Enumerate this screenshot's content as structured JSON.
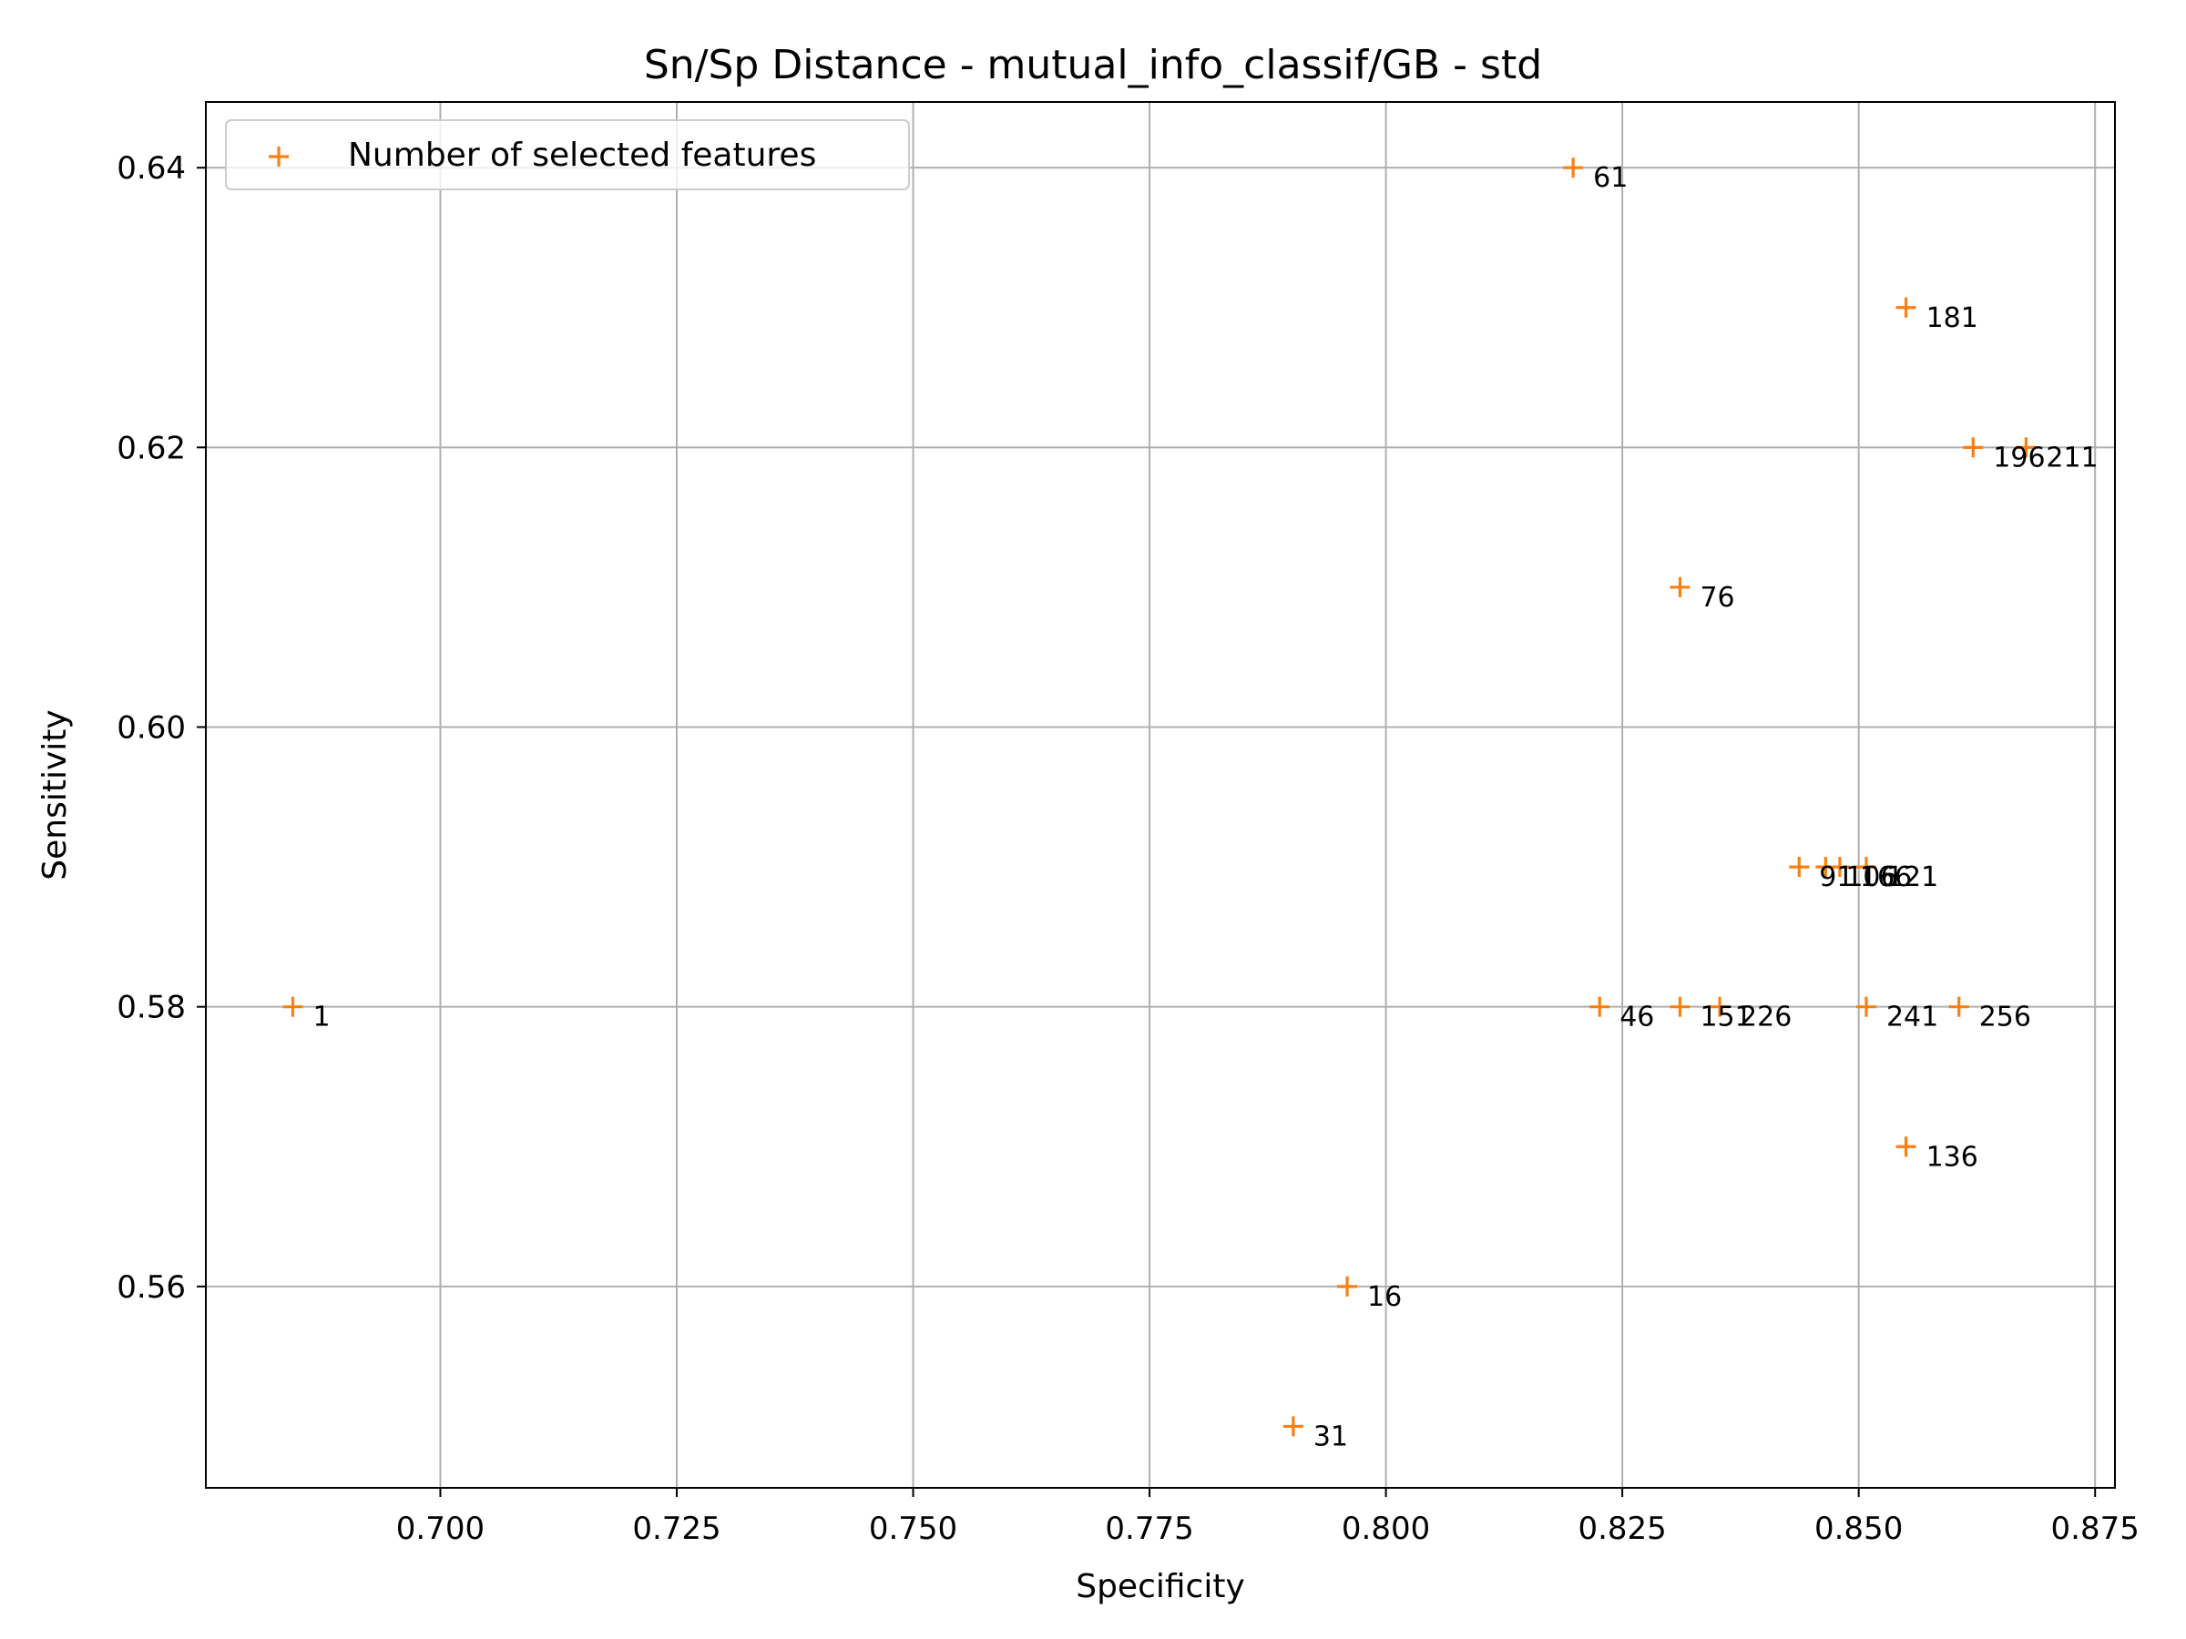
{
  "chart_data": {
    "type": "scatter",
    "title": "Sn/Sp Distance - mutual_info_classif/GB - std",
    "xlabel": "Specificity",
    "ylabel": "Sensitivity",
    "xlim": [
      0.6752,
      0.8771
    ],
    "ylim": [
      0.5456,
      0.6447
    ],
    "xticks": [
      0.7,
      0.725,
      0.75,
      0.775,
      0.8,
      0.825,
      0.85,
      0.875
    ],
    "xtick_labels": [
      "0.700",
      "0.725",
      "0.750",
      "0.775",
      "0.800",
      "0.825",
      "0.850",
      "0.875"
    ],
    "yticks": [
      0.56,
      0.58,
      0.6,
      0.62,
      0.64
    ],
    "ytick_labels": [
      "0.56",
      "0.58",
      "0.60",
      "0.62",
      "0.64"
    ],
    "grid": true,
    "legend": {
      "placement": "top-left",
      "entries": [
        "Number of selected features"
      ]
    },
    "marker": "+",
    "color": "#ff7f0e",
    "series": [
      {
        "name": "Number of selected features",
        "points": [
          {
            "x": 0.6844,
            "y": 0.58,
            "label": "1"
          },
          {
            "x": 0.7959,
            "y": 0.56,
            "label": "16"
          },
          {
            "x": 0.7902,
            "y": 0.55,
            "label": "31"
          },
          {
            "x": 0.8226,
            "y": 0.58,
            "label": "46"
          },
          {
            "x": 0.8198,
            "y": 0.64,
            "label": "61"
          },
          {
            "x": 0.8311,
            "y": 0.61,
            "label": "76"
          },
          {
            "x": 0.8437,
            "y": 0.59,
            "label": "91"
          },
          {
            "x": 0.8465,
            "y": 0.59,
            "label": "106"
          },
          {
            "x": 0.848,
            "y": 0.59,
            "label": "166"
          },
          {
            "x": 0.8508,
            "y": 0.59,
            "label": "121"
          },
          {
            "x": 0.855,
            "y": 0.57,
            "label": "136"
          },
          {
            "x": 0.8311,
            "y": 0.58,
            "label": "151"
          },
          {
            "x": 0.855,
            "y": 0.63,
            "label": "181"
          },
          {
            "x": 0.8621,
            "y": 0.62,
            "label": "196"
          },
          {
            "x": 0.8677,
            "y": 0.62,
            "label": "211"
          },
          {
            "x": 0.8353,
            "y": 0.58,
            "label": "226"
          },
          {
            "x": 0.8508,
            "y": 0.58,
            "label": "241"
          },
          {
            "x": 0.8606,
            "y": 0.58,
            "label": "256"
          }
        ]
      }
    ]
  }
}
